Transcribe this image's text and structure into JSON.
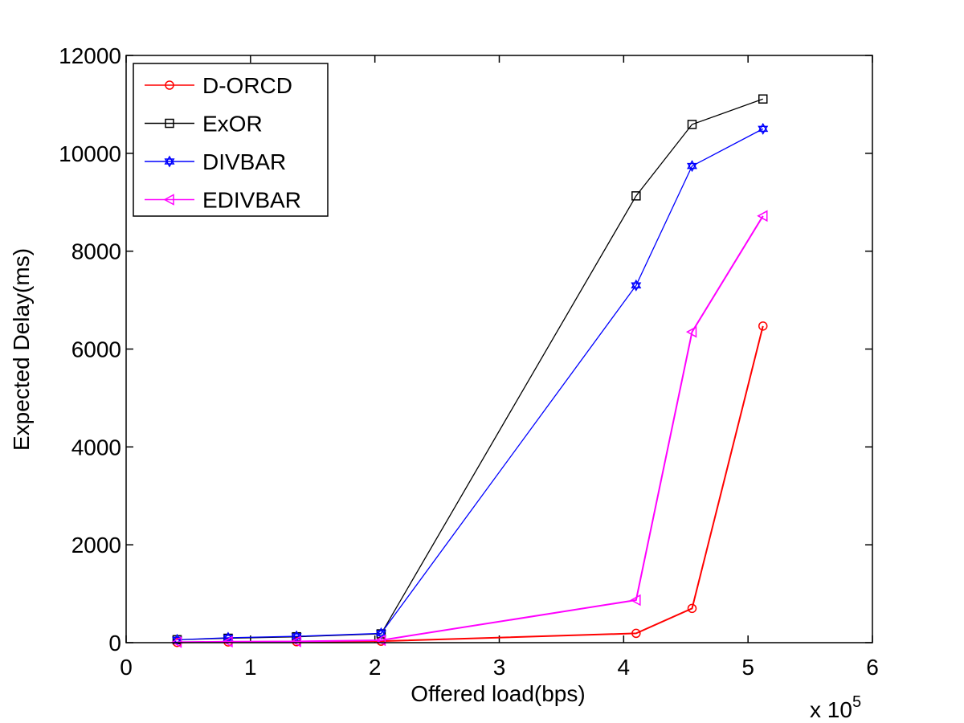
{
  "chart_data": {
    "type": "line",
    "title": "",
    "xlabel": "Offered load(bps)",
    "ylabel": "Expected Delay(ms)",
    "x_multiplier_label": "x 10",
    "x_multiplier_exponent": "5",
    "xlim": [
      0,
      6
    ],
    "ylim": [
      0,
      12000
    ],
    "x_ticks": [
      0,
      1,
      2,
      3,
      4,
      5,
      6
    ],
    "x_tick_labels": [
      "0",
      "1",
      "2",
      "3",
      "4",
      "5",
      "6"
    ],
    "y_ticks": [
      0,
      2000,
      4000,
      6000,
      8000,
      10000,
      12000
    ],
    "y_tick_labels": [
      "0",
      "2000",
      "4000",
      "6000",
      "8000",
      "10000",
      "12000"
    ],
    "grid": false,
    "legend_position": "top-left",
    "series": [
      {
        "name": "D-ORCD",
        "color": "#ff0000",
        "marker": "circle",
        "x": [
          0.41,
          0.82,
          1.37,
          2.05,
          4.1,
          4.55,
          5.12
        ],
        "values": [
          5,
          15,
          20,
          30,
          190,
          700,
          6470
        ]
      },
      {
        "name": "ExOR",
        "color": "#000000",
        "marker": "square",
        "x": [
          0.41,
          0.82,
          1.37,
          2.05,
          4.1,
          4.55,
          5.12
        ],
        "values": [
          60,
          90,
          120,
          180,
          9130,
          10590,
          11110
        ]
      },
      {
        "name": "DIVBAR",
        "color": "#0000ff",
        "marker": "hexagram",
        "x": [
          0.41,
          0.82,
          1.37,
          2.05,
          4.1,
          4.55,
          5.12
        ],
        "values": [
          60,
          100,
          130,
          190,
          7300,
          9740,
          10500
        ]
      },
      {
        "name": "EDIVBAR",
        "color": "#ff00ff",
        "marker": "triangle-left",
        "x": [
          0.41,
          0.82,
          1.37,
          2.05,
          4.1,
          4.55,
          5.12
        ],
        "values": [
          10,
          20,
          25,
          50,
          870,
          6350,
          8720
        ]
      }
    ]
  }
}
